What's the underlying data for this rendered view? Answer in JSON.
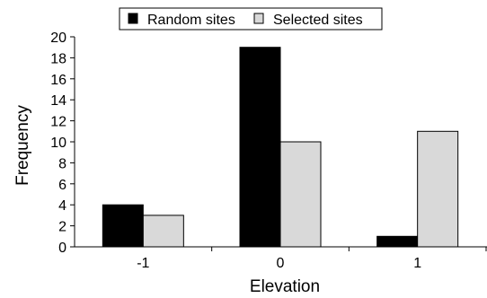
{
  "chart_data": {
    "type": "bar",
    "categories": [
      "-1",
      "0",
      "1"
    ],
    "series": [
      {
        "name": "Random sites",
        "values": [
          4,
          19,
          1
        ],
        "color": "#000000"
      },
      {
        "name": "Selected sites",
        "values": [
          3,
          10,
          11
        ],
        "color": "#d9d9d9"
      }
    ],
    "xlabel": "Elevation",
    "ylabel": "Frequency",
    "ylim": [
      0,
      20
    ],
    "yticks": [
      0,
      2,
      4,
      6,
      8,
      10,
      12,
      14,
      16,
      18,
      20
    ],
    "grid": false,
    "legend_position": "top-center"
  }
}
